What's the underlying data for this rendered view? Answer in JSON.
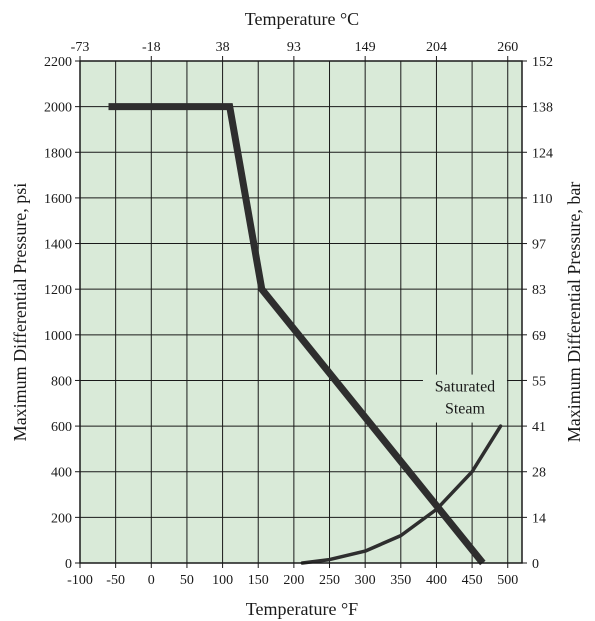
{
  "chart_data": {
    "type": "line",
    "title": "",
    "xlabel": "Temperature °F",
    "x2label": "Temperature °C",
    "ylabel": "Maximum Differential Pressure, psi",
    "y2label": "Maximum Differential Pressure, bar",
    "xlim": [
      -100,
      520
    ],
    "ylim": [
      0,
      2200
    ],
    "grid": true,
    "colors": {
      "plot_bg": "#d9ead8",
      "grid": "#1a1a1a",
      "line": "#2e2e2e"
    },
    "x_ticks": [
      -100,
      -50,
      0,
      50,
      100,
      150,
      200,
      250,
      300,
      350,
      400,
      450,
      500
    ],
    "y_ticks": [
      0,
      200,
      400,
      600,
      800,
      1000,
      1200,
      1400,
      1600,
      1800,
      2000,
      2200
    ],
    "x2_ticks": [
      {
        "label": "-73",
        "f": -100
      },
      {
        "label": "-18",
        "f": 0
      },
      {
        "label": "38",
        "f": 100
      },
      {
        "label": "93",
        "f": 200
      },
      {
        "label": "149",
        "f": 300
      },
      {
        "label": "204",
        "f": 400
      },
      {
        "label": "260",
        "f": 500
      }
    ],
    "y2_ticks": [
      {
        "label": "0",
        "psi": 0
      },
      {
        "label": "14",
        "psi": 200
      },
      {
        "label": "28",
        "psi": 400
      },
      {
        "label": "41",
        "psi": 600
      },
      {
        "label": "55",
        "psi": 800
      },
      {
        "label": "69",
        "psi": 1000
      },
      {
        "label": "83",
        "psi": 1200
      },
      {
        "label": "97",
        "psi": 1400
      },
      {
        "label": "110",
        "psi": 1600
      },
      {
        "label": "124",
        "psi": 1800
      },
      {
        "label": "138",
        "psi": 2000
      },
      {
        "label": "152",
        "psi": 2200
      }
    ],
    "series": [
      {
        "name": "",
        "x": [
          -60,
          110,
          155,
          465
        ],
        "y": [
          2000,
          2000,
          1200,
          0
        ]
      },
      {
        "name": "Saturated Steam",
        "x": [
          212,
          250,
          300,
          350,
          400,
          450,
          490
        ],
        "y": [
          0,
          15,
          52,
          120,
          235,
          400,
          600
        ]
      }
    ],
    "annotations": [
      {
        "line1": "Saturated",
        "line2": "Steam",
        "x": 440,
        "y": 760
      }
    ]
  }
}
